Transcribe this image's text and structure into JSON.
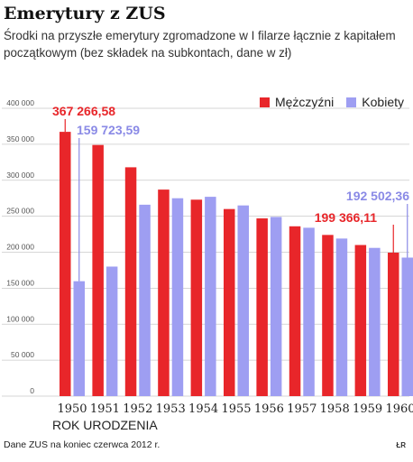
{
  "header": {
    "title": "Emerytury z ZUS",
    "subtitle": "Środki na przyszłe emerytury zgromadzone w I filarze łącznie z kapitałem początkowym (bez składek na subkontach, dane w zł)"
  },
  "footer": {
    "source": "Dane ZUS na koniec czerwca 2012 r.",
    "credit": "ŁR"
  },
  "colors": {
    "men": "#e8262a",
    "women": "#9e9ef2",
    "annotation_men": "#e8262a",
    "annotation_women": "#8a8ae6"
  },
  "chart_data": {
    "type": "bar",
    "xlabel": "ROK URODZENIA",
    "ylabel": "",
    "ylim": [
      0,
      400000
    ],
    "yticks": [
      0,
      50000,
      100000,
      150000,
      200000,
      250000,
      300000,
      350000,
      400000
    ],
    "ytick_labels": [
      "0",
      "50 000",
      "100 000",
      "150 000",
      "200 000",
      "250 000",
      "300 000",
      "350 000",
      "400 000"
    ],
    "grid": true,
    "legend_position": "top-right",
    "categories": [
      "1950",
      "1951",
      "1952",
      "1953",
      "1954",
      "1955",
      "1956",
      "1957",
      "1958",
      "1959",
      "1960"
    ],
    "series": [
      {
        "name": "Mężczyźni",
        "values": [
          367266.58,
          349000,
          318000,
          287000,
          273000,
          260000,
          247000,
          236000,
          224000,
          210000,
          199366.11
        ]
      },
      {
        "name": "Kobiety",
        "values": [
          159723.59,
          180000,
          266000,
          275000,
          277000,
          265000,
          249000,
          234000,
          219000,
          206000,
          192502.36
        ]
      }
    ],
    "annotations": [
      {
        "text": "367 266,58",
        "series": "Mężczyźni",
        "category": "1950"
      },
      {
        "text": "159 723,59",
        "series": "Kobiety",
        "category": "1950"
      },
      {
        "text": "199 366,11",
        "series": "Mężczyźni",
        "category": "1960"
      },
      {
        "text": "192 502,36",
        "series": "Kobiety",
        "category": "1960"
      }
    ]
  }
}
